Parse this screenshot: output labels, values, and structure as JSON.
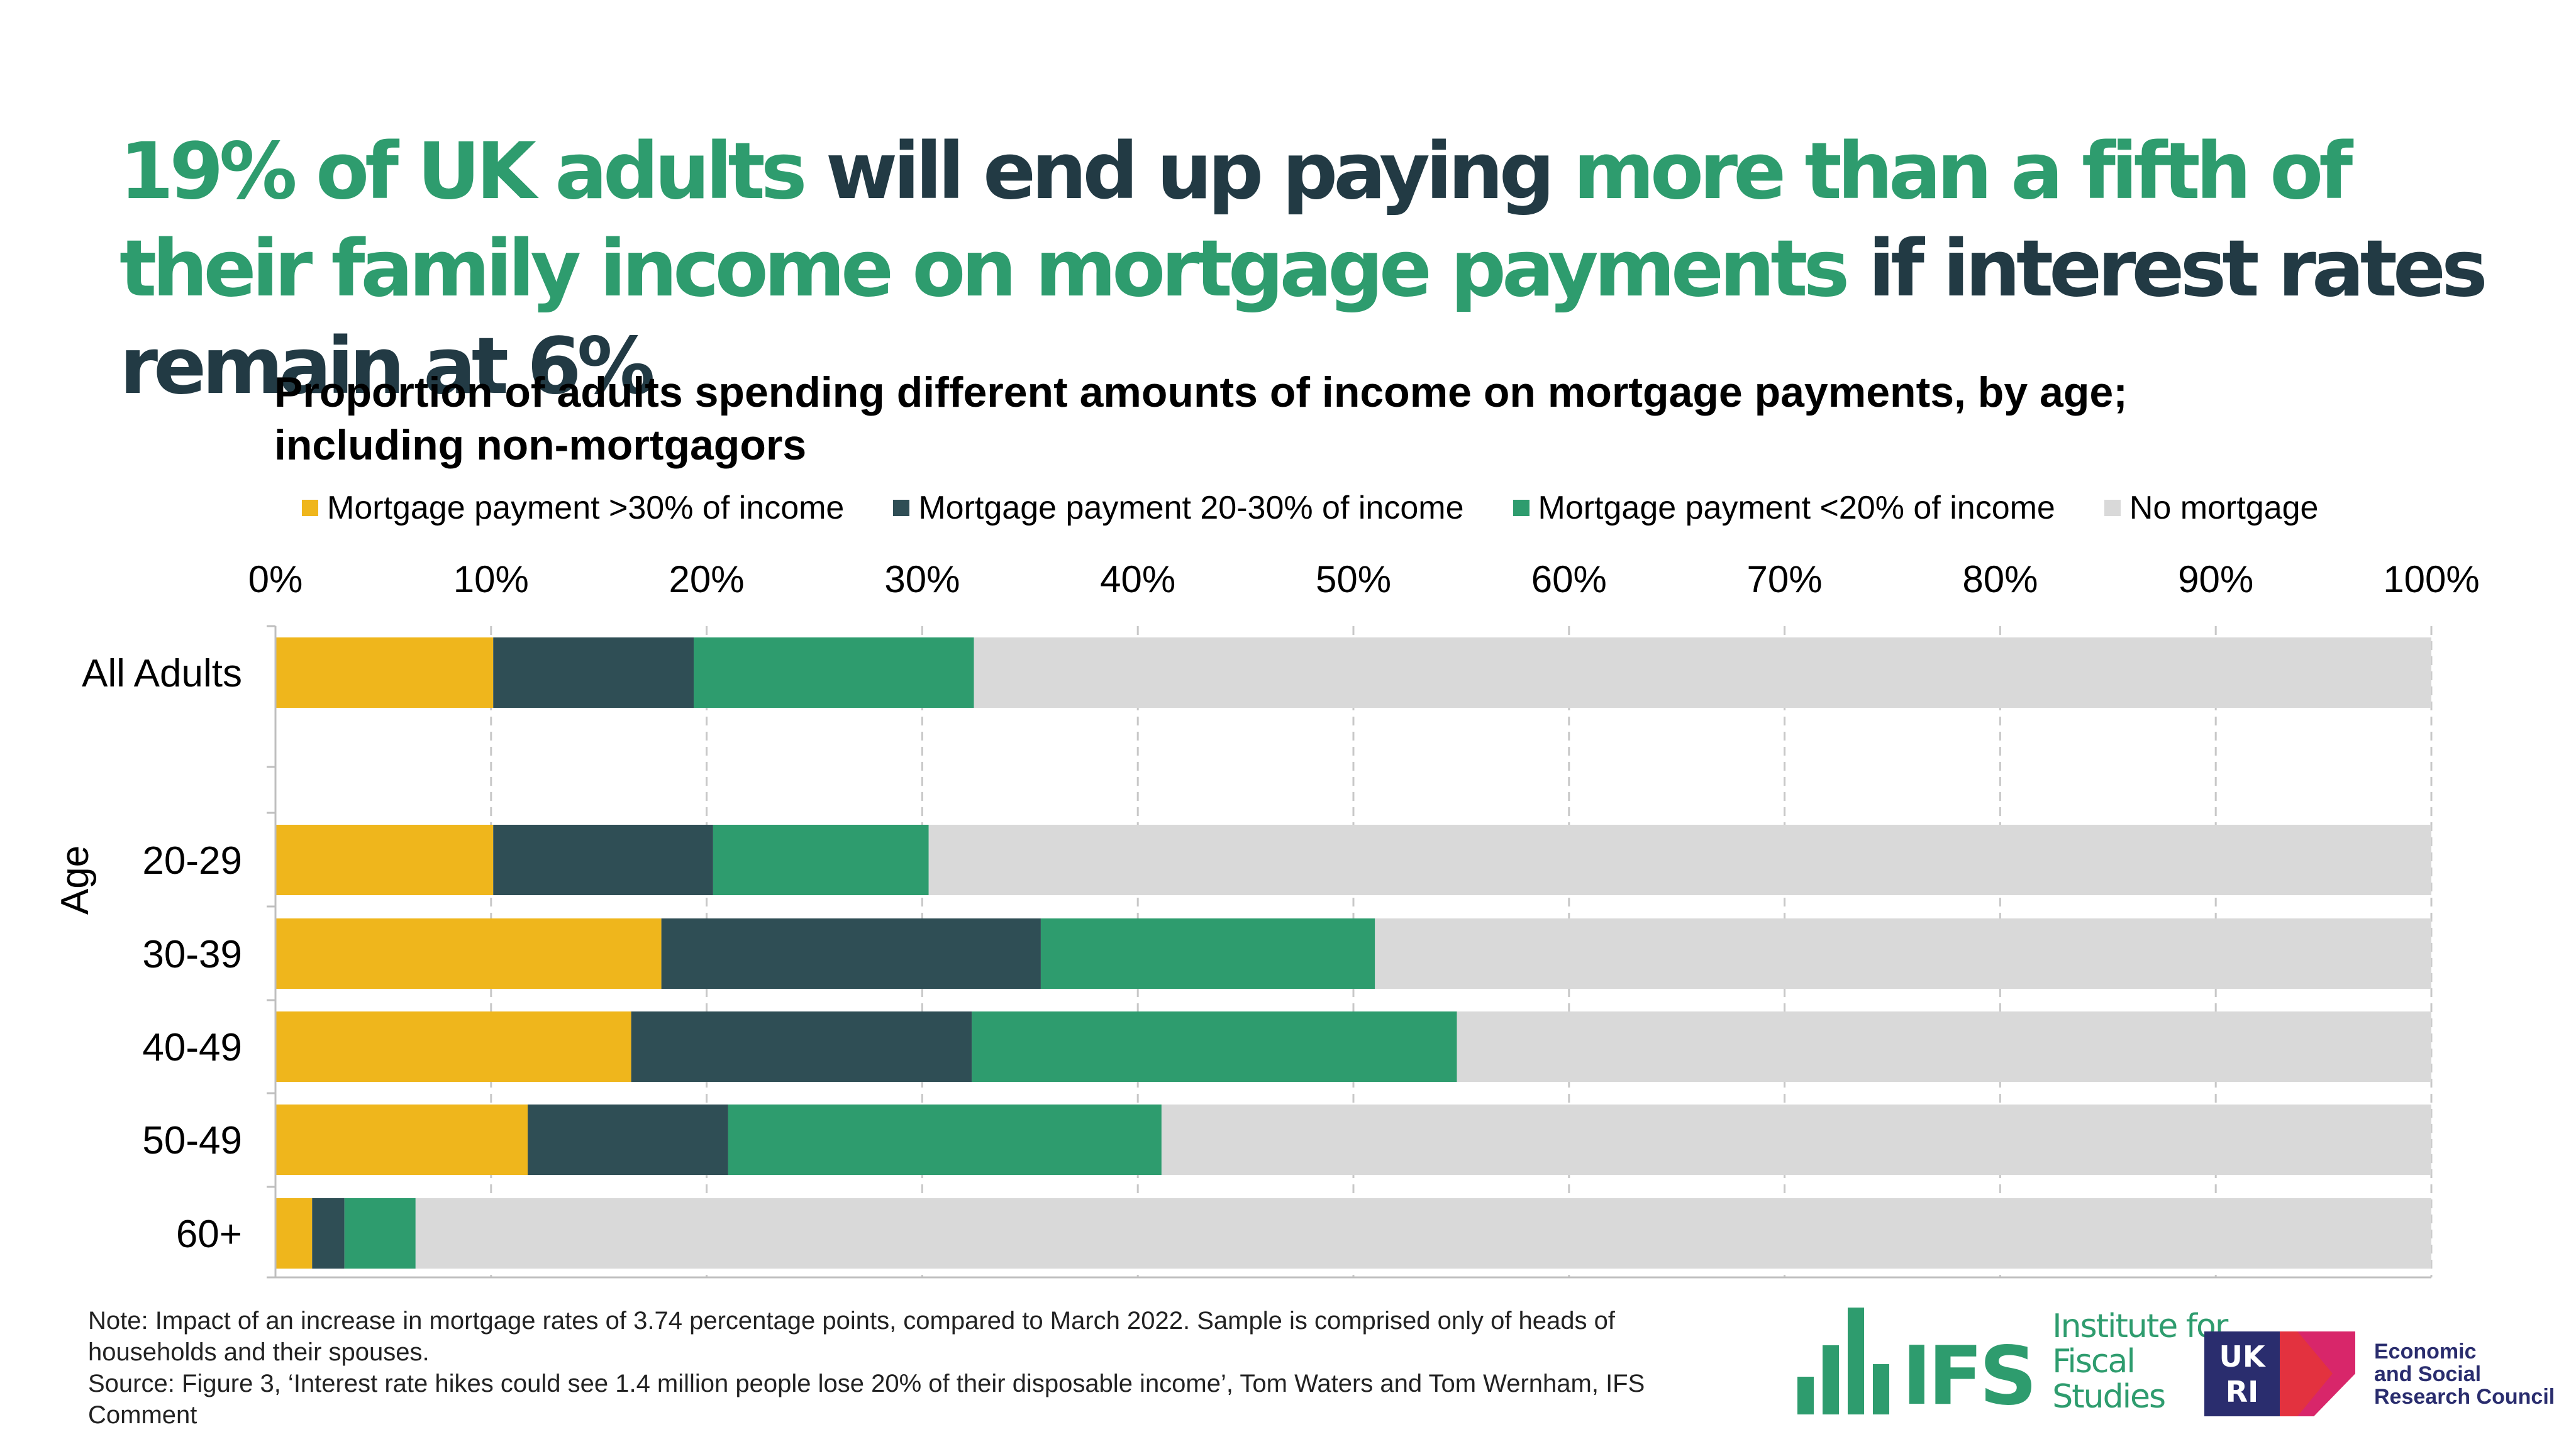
{
  "headline": {
    "part1": "19% of UK adults",
    "part2": "will end up paying",
    "part3": "more than a fifth of their family income on mortgage payments",
    "part4": "if interest rates remain at 6%"
  },
  "colors": {
    "over30": "#efb61c",
    "mid": "#2f4e55",
    "under20": "#2e9c6e",
    "none": "#d9d9d9",
    "headline_green": "#2e9c6e",
    "headline_dark": "#223a44"
  },
  "chart_data": {
    "type": "bar",
    "orientation": "horizontal",
    "stacked": true,
    "title": "Proportion of adults spending different amounts of income on mortgage payments, by age; including non-mortgagors",
    "ylabel": "Age",
    "xlabel": "",
    "categories": [
      "All Adults",
      "20-29",
      "30-39",
      "40-49",
      "50-49",
      "60+"
    ],
    "xlim": [
      0,
      100
    ],
    "x_ticks": [
      "0%",
      "10%",
      "20%",
      "30%",
      "40%",
      "50%",
      "60%",
      "70%",
      "80%",
      "90%",
      "100%"
    ],
    "grid": true,
    "legend_position": "top",
    "series": [
      {
        "name": "Mortgage payment >30% of income",
        "color": "#efb61c",
        "values": [
          10.1,
          10.1,
          17.9,
          16.5,
          11.7,
          1.7
        ]
      },
      {
        "name": "Mortgage payment 20-30% of income",
        "color": "#2f4e55",
        "values": [
          9.3,
          10.2,
          17.6,
          15.8,
          9.3,
          1.5
        ]
      },
      {
        "name": "Mortgage payment <20% of income",
        "color": "#2e9c6e",
        "values": [
          13.0,
          10.0,
          15.5,
          22.5,
          20.1,
          3.3
        ]
      },
      {
        "name": "No mortgage",
        "color": "#d9d9d9",
        "values": [
          67.6,
          69.7,
          49.0,
          45.2,
          58.9,
          93.5
        ]
      }
    ]
  },
  "note": {
    "line1": "Note: Impact of an increase in mortgage rates of 3.74 percentage points, compared to March 2022. Sample is comprised only of heads of households and their spouses.",
    "line2": "Source: Figure 3, ‘Interest rate hikes could see 1.4 million people lose 20% of their disposable income’, Tom Waters and Tom Wernham, IFS Comment"
  },
  "logos": {
    "ifs_abbr": "IFS",
    "ifs_line1": "Institute for",
    "ifs_line2": "Fiscal Studies",
    "ukri_top": "UK",
    "ukri_bottom": "RI",
    "esrc_line1": "Economic",
    "esrc_line2": "and Social",
    "esrc_line3": "Research Council"
  }
}
